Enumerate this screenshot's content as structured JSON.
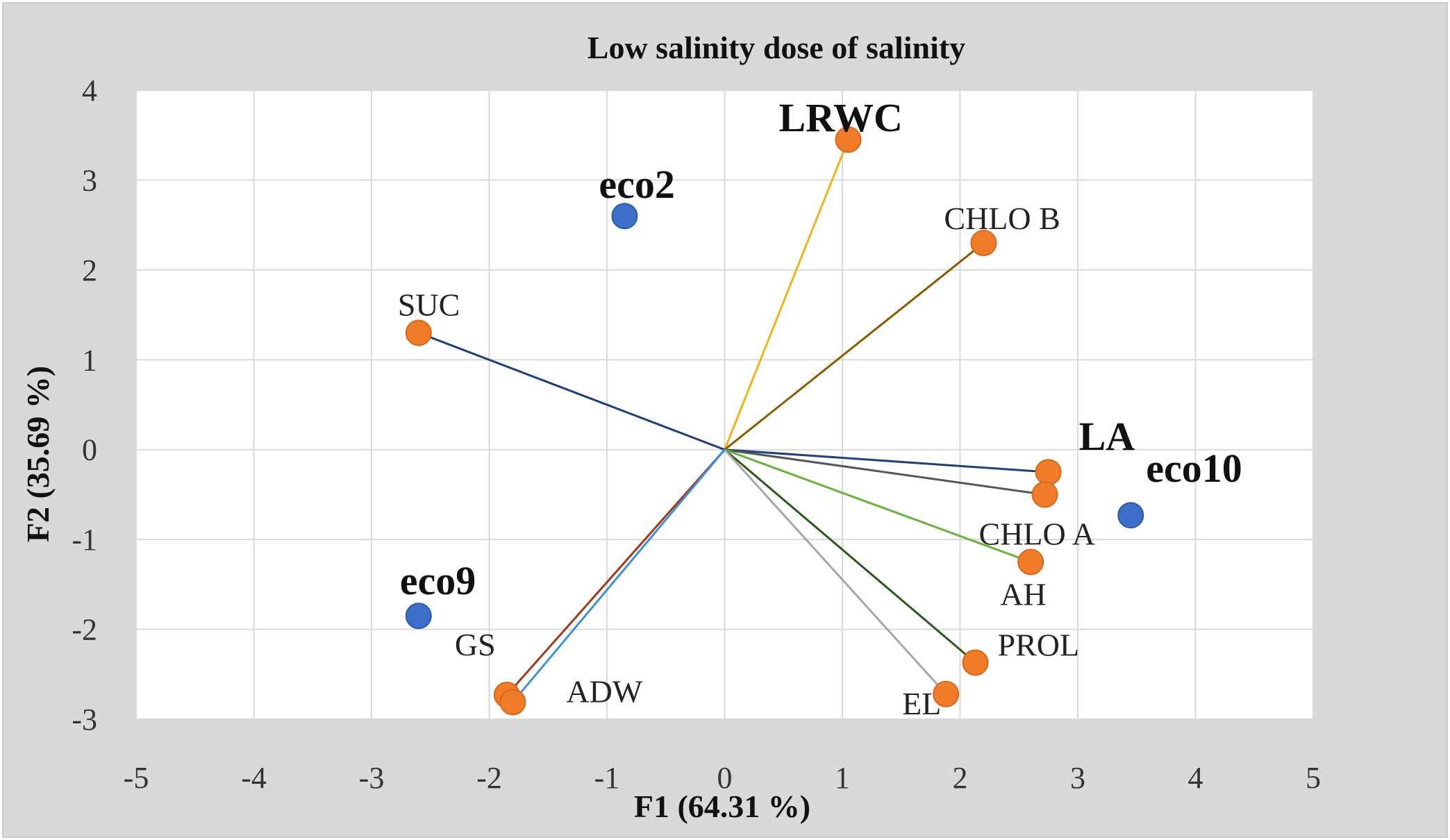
{
  "chart_data": {
    "type": "scatter",
    "title": "Low salinity dose of salinity",
    "xlabel": "F1 (64.31 %)",
    "ylabel": "F2 (35.69 %)",
    "xlim": [
      -5,
      5
    ],
    "ylim": [
      -3,
      4
    ],
    "xticks": [
      -5,
      -4,
      -3,
      -2,
      -1,
      0,
      1,
      2,
      3,
      4,
      5
    ],
    "yticks": [
      -3,
      -2,
      -1,
      0,
      1,
      2,
      3,
      4
    ],
    "grid": true,
    "colors": {
      "variable_point": "#f07c2a",
      "observation_point": "#3d6fc8",
      "frame_bg": "#d9d9d9",
      "plot_bg": "#ffffff",
      "grid": "#d9d9d9"
    },
    "variables": [
      {
        "label": "LRWC",
        "x": 1.05,
        "y": 3.45,
        "color": "#f2b21a",
        "bold": true
      },
      {
        "label": "CHLO B",
        "x": 2.2,
        "y": 2.3,
        "color": "#8a5a00",
        "bold": false
      },
      {
        "label": "SUC",
        "x": -2.6,
        "y": 1.3,
        "color": "#1f3f7a",
        "bold": false
      },
      {
        "label": "LA",
        "x": 2.75,
        "y": -0.25,
        "color": "#1f3f7a",
        "bold": true
      },
      {
        "label": "CHLO A",
        "x": 2.72,
        "y": -0.5,
        "color": "#555555",
        "bold": false
      },
      {
        "label": "AH",
        "x": 2.6,
        "y": -1.25,
        "color": "#6ab23c",
        "bold": false
      },
      {
        "label": "PROL",
        "x": 2.13,
        "y": -2.37,
        "color": "#2a5a1a",
        "bold": false
      },
      {
        "label": "EL",
        "x": 1.88,
        "y": -2.72,
        "color": "#a6a6a6",
        "bold": false
      },
      {
        "label": "GS",
        "x": -1.85,
        "y": -2.73,
        "color": "#a0391a",
        "bold": false
      },
      {
        "label": "ADW",
        "x": -1.8,
        "y": -2.81,
        "color": "#3f8fd8",
        "bold": false
      }
    ],
    "observations": [
      {
        "label": "eco2",
        "x": -0.85,
        "y": 2.6
      },
      {
        "label": "eco9",
        "x": -2.6,
        "y": -1.85
      },
      {
        "label": "eco10",
        "x": 3.45,
        "y": -0.73
      }
    ]
  }
}
